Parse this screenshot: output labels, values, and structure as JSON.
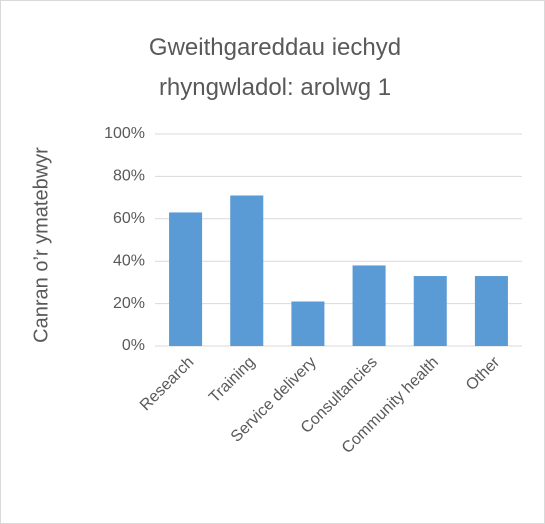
{
  "chart_data": {
    "type": "bar",
    "title": "Gweithgareddau iechyd rhyngwladol: arolwg 1",
    "y_label": "Canran o’r ymatebwyr",
    "categories": [
      "Research",
      "Training",
      "Service delivery",
      "Consultancies",
      "Community health",
      "Other"
    ],
    "values": [
      63,
      71,
      21,
      38,
      33,
      33
    ],
    "color": "#5b9bd5",
    "ylim": [
      0,
      100
    ],
    "yticks": [
      {
        "value": 0,
        "label": "0%"
      },
      {
        "value": 20,
        "label": "20%"
      },
      {
        "value": 40,
        "label": "40%"
      },
      {
        "value": 60,
        "label": "60%"
      },
      {
        "value": 80,
        "label": "80%"
      },
      {
        "value": 100,
        "label": "100%"
      }
    ],
    "grid": true
  }
}
